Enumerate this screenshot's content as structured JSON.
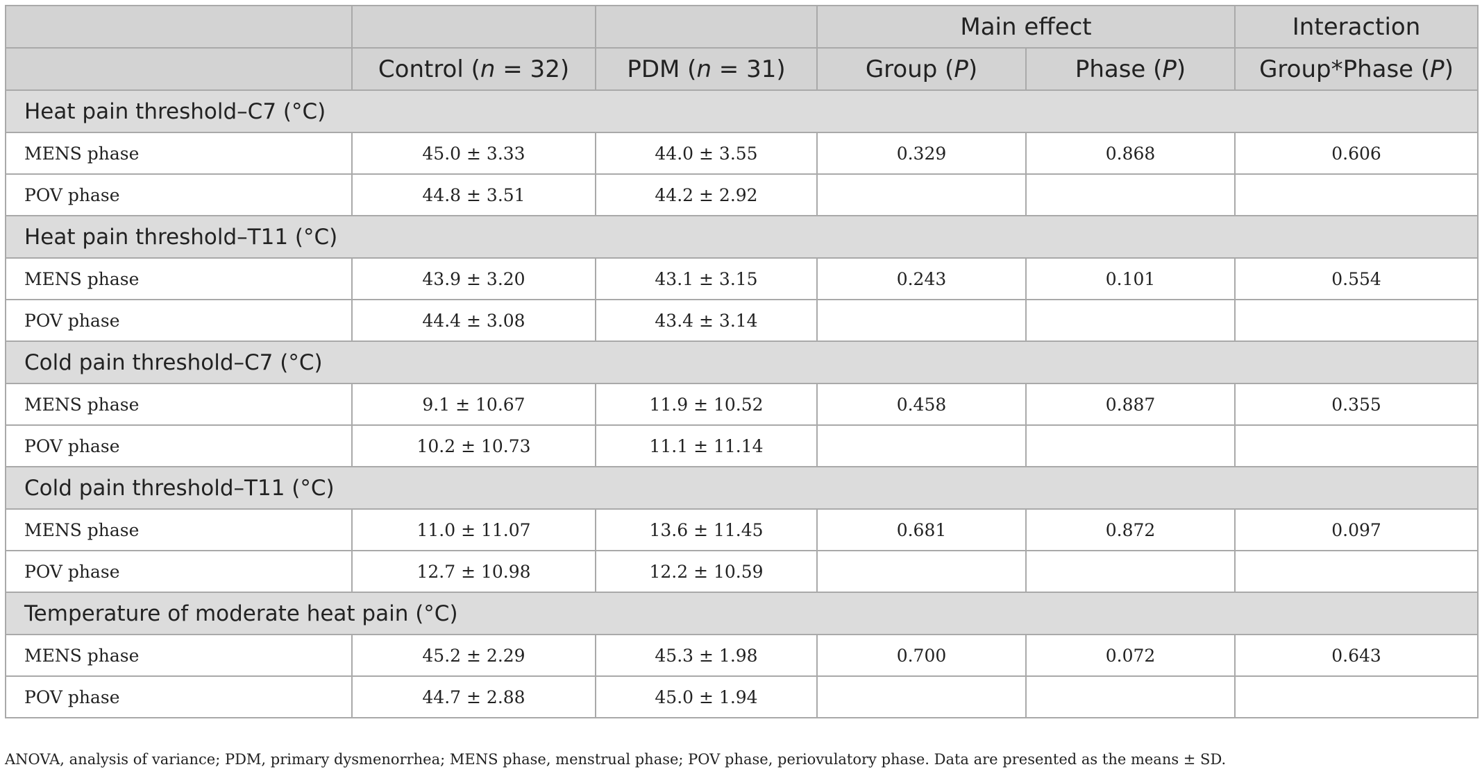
{
  "header": {
    "row1": {
      "main_effect": "Main effect",
      "interaction": "Interaction"
    },
    "row2": {
      "control_pre": "Control (",
      "control_n": "n",
      "control_post": " = 32)",
      "pdm_pre": "PDM (",
      "pdm_n": "n",
      "pdm_post": " = 31)",
      "group_pre": "Group (",
      "group_p": "P",
      "group_post": ")",
      "phase_pre": "Phase (",
      "phase_p": "P",
      "phase_post": ")",
      "inter_pre": "Group*Phase (",
      "inter_p": "P",
      "inter_post": ")"
    }
  },
  "sections": [
    {
      "title": "Heat pain threshold–C7 (°C)",
      "rows": [
        {
          "label": "MENS phase",
          "control": "45.0 ± 3.33",
          "pdm": "44.0 ± 3.55",
          "group_p": "0.329",
          "phase_p": "0.868",
          "interaction_p": "0.606"
        },
        {
          "label": "POV phase",
          "control": "44.8 ± 3.51",
          "pdm": "44.2 ± 2.92",
          "group_p": "",
          "phase_p": "",
          "interaction_p": ""
        }
      ]
    },
    {
      "title": "Heat pain threshold–T11 (°C)",
      "rows": [
        {
          "label": "MENS phase",
          "control": "43.9 ± 3.20",
          "pdm": "43.1 ± 3.15",
          "group_p": "0.243",
          "phase_p": "0.101",
          "interaction_p": "0.554"
        },
        {
          "label": "POV phase",
          "control": "44.4 ± 3.08",
          "pdm": "43.4 ± 3.14",
          "group_p": "",
          "phase_p": "",
          "interaction_p": ""
        }
      ]
    },
    {
      "title": "Cold pain threshold–C7 (°C)",
      "rows": [
        {
          "label": "MENS phase",
          "control": "9.1 ± 10.67",
          "pdm": "11.9 ± 10.52",
          "group_p": "0.458",
          "phase_p": "0.887",
          "interaction_p": "0.355"
        },
        {
          "label": "POV phase",
          "control": "10.2 ± 10.73",
          "pdm": "11.1 ± 11.14",
          "group_p": "",
          "phase_p": "",
          "interaction_p": ""
        }
      ]
    },
    {
      "title": "Cold pain threshold–T11 (°C)",
      "rows": [
        {
          "label": "MENS phase",
          "control": "11.0 ± 11.07",
          "pdm": "13.6 ± 11.45",
          "group_p": "0.681",
          "phase_p": "0.872",
          "interaction_p": "0.097"
        },
        {
          "label": "POV phase",
          "control": "12.7 ± 10.98",
          "pdm": "12.2 ± 10.59",
          "group_p": "",
          "phase_p": "",
          "interaction_p": ""
        }
      ]
    },
    {
      "title": "Temperature of moderate heat pain (°C)",
      "rows": [
        {
          "label": "MENS phase",
          "control": "45.2 ± 2.29",
          "pdm": "45.3 ± 1.98",
          "group_p": "0.700",
          "phase_p": "0.072",
          "interaction_p": "0.643"
        },
        {
          "label": "POV phase",
          "control": "44.7 ± 2.88",
          "pdm": "45.0 ± 1.94",
          "group_p": "",
          "phase_p": "",
          "interaction_p": ""
        }
      ]
    }
  ],
  "footnote": "ANOVA, analysis of variance; PDM, primary dysmenorrhea; MENS phase, menstrual phase; POV phase, periovulatory phase. Data are presented as the means ± SD."
}
